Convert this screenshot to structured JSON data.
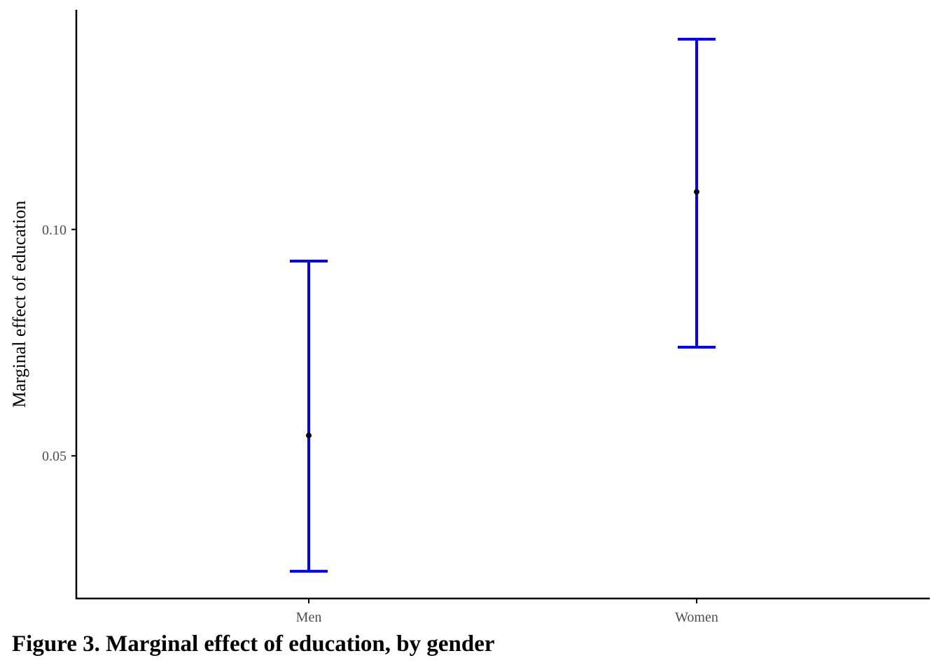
{
  "caption": "Figure 3. Marginal effect of education, by gender",
  "colors": {
    "errorbar": "#0000FF",
    "point": "#000000",
    "axis": "#000000",
    "tick_label": "#4d4d4d"
  },
  "chart_data": {
    "type": "errorbar",
    "title": "",
    "xlabel": "",
    "ylabel": "Marginal effect of education",
    "categories": [
      "Men",
      "Women"
    ],
    "estimates": [
      0.0545,
      0.1083
    ],
    "lower": [
      0.0245,
      0.074
    ],
    "upper": [
      0.093,
      0.142
    ],
    "yticks": [
      0.05,
      0.1
    ],
    "ytick_labels": [
      "0.05",
      "0.10"
    ],
    "ylim": [
      0.0185,
      0.1485
    ],
    "grid": false,
    "legend": "none"
  }
}
